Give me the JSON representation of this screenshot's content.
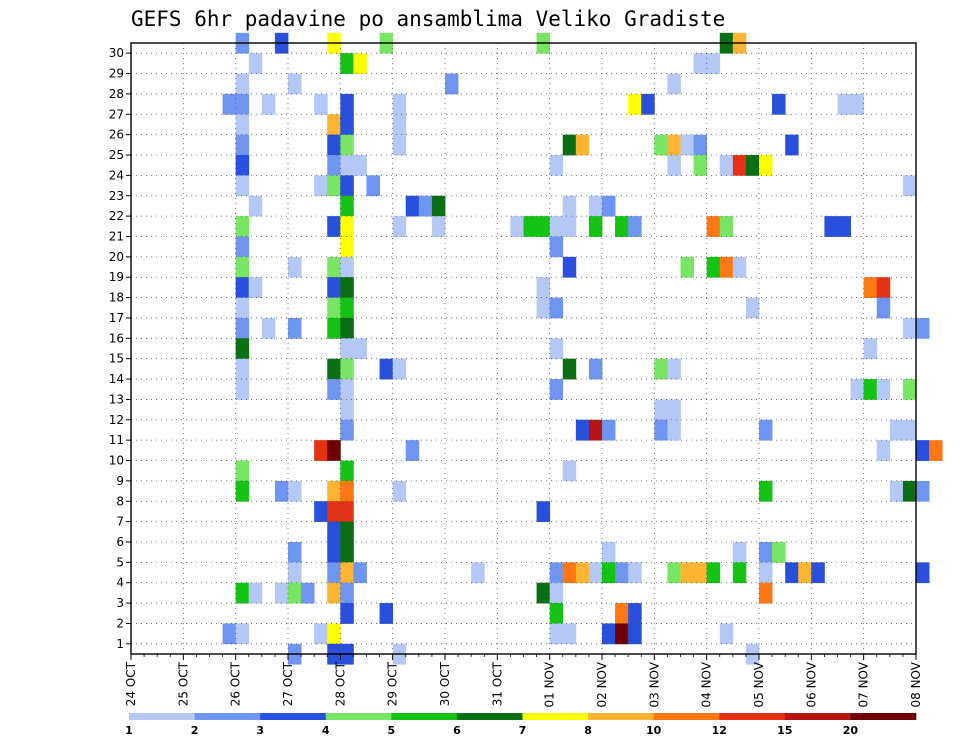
{
  "chart_data": {
    "type": "heatmap",
    "title": "GEFS 6hr padavine po ansamblima Veliko Gradiste",
    "xlabel": "",
    "ylabel": "",
    "x_tick_labels": [
      "24 OCT",
      "25 OCT",
      "26 OCT",
      "27 OCT",
      "28 OCT",
      "29 OCT",
      "30 OCT",
      "31 OCT",
      "01 NOV",
      "02 NOV",
      "03 NOV",
      "04 NOV",
      "05 NOV",
      "06 NOV",
      "07 NOV",
      "08 NOV"
    ],
    "x_range": [
      "24 OCT",
      "08 NOV"
    ],
    "steps_per_day": 4,
    "y_tick_labels": [
      "1",
      "2",
      "3",
      "4",
      "5",
      "6",
      "7",
      "8",
      "9",
      "10",
      "11",
      "12",
      "13",
      "14",
      "15",
      "16",
      "17",
      "18",
      "19",
      "20",
      "21",
      "22",
      "23",
      "24",
      "25",
      "26",
      "27",
      "28",
      "29",
      "30"
    ],
    "y_range": [
      0,
      30
    ],
    "grid": true,
    "colorbar": {
      "position": "bottom",
      "thresholds": [
        1,
        2,
        3,
        4,
        5,
        6,
        7,
        8,
        10,
        12,
        15,
        20
      ],
      "labels": [
        "1",
        "2",
        "3",
        "4",
        "5",
        "6",
        "7",
        "8",
        "10",
        "12",
        "15",
        "20"
      ],
      "colors": [
        "#b4c8f5",
        "#6e96f0",
        "#2850dc",
        "#78e664",
        "#14c314",
        "#0a6e14",
        "#ffff00",
        "#ffb432",
        "#ff7814",
        "#e63214",
        "#b41414",
        "#6e0000"
      ]
    },
    "cells_note": "member, time step index (6h steps from 24 OCT 00Z), colour class (1..12)",
    "cells": [
      [
        30,
        8,
        2
      ],
      [
        30,
        11,
        3
      ],
      [
        30,
        15,
        7
      ],
      [
        30,
        19,
        4
      ],
      [
        30,
        31,
        4
      ],
      [
        30,
        45,
        6
      ],
      [
        30,
        46,
        8
      ],
      [
        29,
        9,
        1
      ],
      [
        29,
        16,
        5
      ],
      [
        29,
        17,
        7
      ],
      [
        29,
        43,
        1
      ],
      [
        29,
        44,
        1
      ],
      [
        28,
        8,
        1
      ],
      [
        28,
        12,
        1
      ],
      [
        28,
        24,
        2
      ],
      [
        28,
        41,
        1
      ],
      [
        27,
        7,
        2
      ],
      [
        27,
        8,
        2
      ],
      [
        27,
        10,
        1
      ],
      [
        27,
        14,
        1
      ],
      [
        27,
        16,
        3
      ],
      [
        27,
        20,
        1
      ],
      [
        27,
        38,
        7
      ],
      [
        27,
        39,
        3
      ],
      [
        27,
        49,
        3
      ],
      [
        27,
        54,
        1
      ],
      [
        27,
        55,
        1
      ],
      [
        26,
        8,
        1
      ],
      [
        26,
        15,
        8
      ],
      [
        26,
        16,
        3
      ],
      [
        26,
        20,
        1
      ],
      [
        25,
        8,
        2
      ],
      [
        25,
        15,
        3
      ],
      [
        25,
        16,
        4
      ],
      [
        25,
        20,
        1
      ],
      [
        25,
        33,
        6
      ],
      [
        25,
        34,
        8
      ],
      [
        25,
        40,
        4
      ],
      [
        25,
        41,
        8
      ],
      [
        25,
        42,
        1
      ],
      [
        25,
        43,
        2
      ],
      [
        25,
        50,
        3
      ],
      [
        24,
        8,
        3
      ],
      [
        24,
        15,
        2
      ],
      [
        24,
        16,
        1
      ],
      [
        24,
        17,
        1
      ],
      [
        24,
        32,
        1
      ],
      [
        24,
        41,
        1
      ],
      [
        24,
        43,
        4
      ],
      [
        24,
        45,
        1
      ],
      [
        24,
        46,
        10
      ],
      [
        24,
        47,
        6
      ],
      [
        24,
        48,
        7
      ],
      [
        23,
        8,
        1
      ],
      [
        23,
        14,
        1
      ],
      [
        23,
        15,
        4
      ],
      [
        23,
        16,
        3
      ],
      [
        23,
        18,
        2
      ],
      [
        23,
        59,
        1
      ],
      [
        22,
        9,
        1
      ],
      [
        22,
        16,
        5
      ],
      [
        22,
        21,
        3
      ],
      [
        22,
        22,
        2
      ],
      [
        22,
        23,
        6
      ],
      [
        22,
        33,
        1
      ],
      [
        22,
        35,
        1
      ],
      [
        22,
        36,
        2
      ],
      [
        21,
        8,
        4
      ],
      [
        21,
        15,
        3
      ],
      [
        21,
        16,
        7
      ],
      [
        21,
        20,
        1
      ],
      [
        21,
        23,
        1
      ],
      [
        21,
        29,
        1
      ],
      [
        21,
        30,
        5
      ],
      [
        21,
        31,
        5
      ],
      [
        21,
        32,
        1
      ],
      [
        21,
        33,
        1
      ],
      [
        21,
        35,
        5
      ],
      [
        21,
        37,
        5
      ],
      [
        21,
        38,
        2
      ],
      [
        21,
        44,
        9
      ],
      [
        21,
        45,
        4
      ],
      [
        21,
        53,
        3
      ],
      [
        21,
        54,
        3
      ],
      [
        20,
        8,
        2
      ],
      [
        20,
        16,
        7
      ],
      [
        20,
        32,
        2
      ],
      [
        19,
        8,
        4
      ],
      [
        19,
        12,
        1
      ],
      [
        19,
        15,
        4
      ],
      [
        19,
        16,
        1
      ],
      [
        19,
        33,
        3
      ],
      [
        19,
        42,
        4
      ],
      [
        19,
        44,
        5
      ],
      [
        19,
        45,
        9
      ],
      [
        19,
        46,
        1
      ],
      [
        18,
        8,
        3
      ],
      [
        18,
        9,
        1
      ],
      [
        18,
        15,
        3
      ],
      [
        18,
        16,
        6
      ],
      [
        18,
        31,
        1
      ],
      [
        18,
        56,
        9
      ],
      [
        18,
        57,
        10
      ],
      [
        17,
        8,
        1
      ],
      [
        17,
        15,
        4
      ],
      [
        17,
        16,
        5
      ],
      [
        17,
        31,
        1
      ],
      [
        17,
        32,
        2
      ],
      [
        17,
        47,
        1
      ],
      [
        17,
        57,
        2
      ],
      [
        16,
        8,
        2
      ],
      [
        16,
        10,
        1
      ],
      [
        16,
        12,
        2
      ],
      [
        16,
        15,
        5
      ],
      [
        16,
        16,
        6
      ],
      [
        16,
        59,
        1
      ],
      [
        16,
        60,
        2
      ],
      [
        15,
        8,
        6
      ],
      [
        15,
        16,
        1
      ],
      [
        15,
        17,
        1
      ],
      [
        15,
        32,
        1
      ],
      [
        15,
        56,
        1
      ],
      [
        14,
        8,
        1
      ],
      [
        14,
        15,
        6
      ],
      [
        14,
        16,
        4
      ],
      [
        14,
        19,
        3
      ],
      [
        14,
        20,
        1
      ],
      [
        14,
        33,
        6
      ],
      [
        14,
        35,
        2
      ],
      [
        14,
        40,
        4
      ],
      [
        14,
        41,
        1
      ],
      [
        13,
        8,
        1
      ],
      [
        13,
        15,
        2
      ],
      [
        13,
        16,
        1
      ],
      [
        13,
        32,
        2
      ],
      [
        13,
        55,
        1
      ],
      [
        13,
        56,
        5
      ],
      [
        13,
        57,
        1
      ],
      [
        13,
        59,
        4
      ],
      [
        12,
        16,
        1
      ],
      [
        12,
        40,
        1
      ],
      [
        12,
        41,
        1
      ],
      [
        11,
        16,
        2
      ],
      [
        11,
        34,
        3
      ],
      [
        11,
        35,
        11
      ],
      [
        11,
        36,
        2
      ],
      [
        11,
        40,
        2
      ],
      [
        11,
        41,
        1
      ],
      [
        11,
        48,
        2
      ],
      [
        11,
        58,
        1
      ],
      [
        11,
        59,
        1
      ],
      [
        10,
        14,
        10
      ],
      [
        10,
        15,
        12
      ],
      [
        10,
        21,
        2
      ],
      [
        10,
        57,
        1
      ],
      [
        10,
        60,
        3
      ],
      [
        10,
        61,
        9
      ],
      [
        9,
        8,
        4
      ],
      [
        9,
        16,
        5
      ],
      [
        9,
        33,
        1
      ],
      [
        8,
        8,
        5
      ],
      [
        8,
        11,
        2
      ],
      [
        8,
        12,
        1
      ],
      [
        8,
        15,
        8
      ],
      [
        8,
        16,
        9
      ],
      [
        8,
        20,
        1
      ],
      [
        8,
        48,
        5
      ],
      [
        8,
        58,
        1
      ],
      [
        8,
        59,
        6
      ],
      [
        8,
        60,
        2
      ],
      [
        7,
        14,
        3
      ],
      [
        7,
        15,
        10
      ],
      [
        7,
        16,
        10
      ],
      [
        7,
        31,
        3
      ],
      [
        6,
        15,
        3
      ],
      [
        6,
        16,
        6
      ],
      [
        5,
        12,
        2
      ],
      [
        5,
        15,
        3
      ],
      [
        5,
        16,
        6
      ],
      [
        5,
        36,
        1
      ],
      [
        5,
        46,
        1
      ],
      [
        5,
        48,
        2
      ],
      [
        5,
        49,
        4
      ],
      [
        4,
        12,
        1
      ],
      [
        4,
        15,
        2
      ],
      [
        4,
        16,
        8
      ],
      [
        4,
        17,
        2
      ],
      [
        4,
        26,
        1
      ],
      [
        4,
        32,
        2
      ],
      [
        4,
        33,
        9
      ],
      [
        4,
        34,
        8
      ],
      [
        4,
        35,
        1
      ],
      [
        4,
        36,
        5
      ],
      [
        4,
        37,
        2
      ],
      [
        4,
        38,
        1
      ],
      [
        4,
        41,
        4
      ],
      [
        4,
        42,
        8
      ],
      [
        4,
        43,
        8
      ],
      [
        4,
        44,
        5
      ],
      [
        4,
        46,
        5
      ],
      [
        4,
        48,
        1
      ],
      [
        4,
        50,
        3
      ],
      [
        4,
        51,
        8
      ],
      [
        4,
        52,
        3
      ],
      [
        4,
        60,
        3
      ],
      [
        3,
        8,
        5
      ],
      [
        3,
        9,
        1
      ],
      [
        3,
        11,
        1
      ],
      [
        3,
        12,
        4
      ],
      [
        3,
        13,
        2
      ],
      [
        3,
        15,
        8
      ],
      [
        3,
        16,
        2
      ],
      [
        3,
        31,
        6
      ],
      [
        3,
        32,
        1
      ],
      [
        3,
        48,
        9
      ],
      [
        2,
        16,
        3
      ],
      [
        2,
        19,
        3
      ],
      [
        2,
        32,
        5
      ],
      [
        2,
        37,
        9
      ],
      [
        2,
        38,
        3
      ],
      [
        1,
        7,
        2
      ],
      [
        1,
        8,
        1
      ],
      [
        1,
        14,
        1
      ],
      [
        1,
        15,
        7
      ],
      [
        1,
        32,
        1
      ],
      [
        1,
        33,
        1
      ],
      [
        1,
        36,
        3
      ],
      [
        1,
        37,
        12
      ],
      [
        1,
        38,
        3
      ],
      [
        1,
        45,
        1
      ],
      [
        0,
        12,
        2
      ],
      [
        0,
        15,
        3
      ],
      [
        0,
        16,
        3
      ],
      [
        0,
        20,
        1
      ],
      [
        0,
        47,
        1
      ]
    ]
  }
}
